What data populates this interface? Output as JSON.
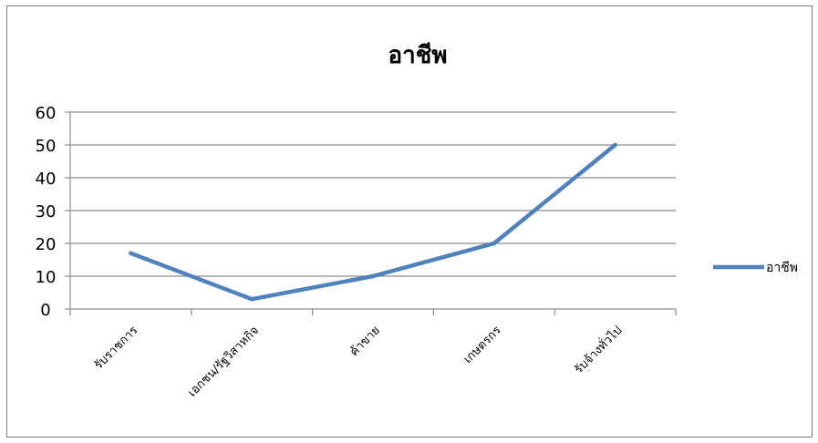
{
  "chart_data": {
    "type": "line",
    "title": "อาชีพ",
    "categories": [
      "รับราชการ",
      "เอกชน/รัฐวิสาหกิจ",
      "ค้าขาย",
      "เกษตรกร",
      "รับจ้างทั่วไป"
    ],
    "series": [
      {
        "name": "อาชีพ",
        "values": [
          17,
          3,
          10,
          20,
          50
        ],
        "color": "#4f81bd"
      }
    ],
    "ylim": [
      0,
      60
    ],
    "yticks": [
      "0",
      "10",
      "20",
      "30",
      "40",
      "50",
      "60"
    ],
    "grid": true,
    "legend": "right",
    "xlabel": "",
    "ylabel": ""
  }
}
